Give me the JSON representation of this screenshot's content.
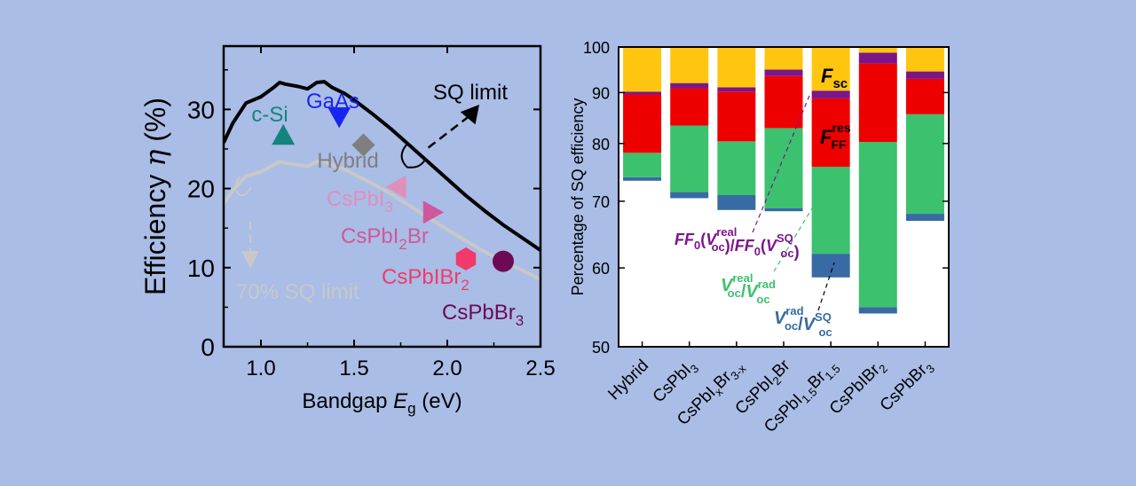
{
  "colors": {
    "background": "#a9bde6",
    "sq_limit_line": "#000000",
    "sq70_line": "#c8c8c8",
    "fsc": "#ffc50f",
    "ff_real": "#7b168a",
    "ff_res": "#ee0000",
    "voc_real_rad": "#3cc16e",
    "voc_rad_sq": "#386aa3"
  },
  "chart_data": [
    {
      "type": "scatter",
      "xlabel": "Bandgap E_g (eV)",
      "xlabel_parts": {
        "pre": "Bandgap ",
        "sym": "E",
        "sub": "g",
        "post": " (eV)"
      },
      "ylabel": "Efficiency η (%)",
      "ylabel_parts": {
        "pre": "Efficiency ",
        "sym": "η",
        "post": " (%)"
      },
      "xlim": [
        0.8,
        2.5
      ],
      "ylim": [
        0,
        38
      ],
      "xticks": [
        "1.0",
        "1.5",
        "2.0",
        "2.5"
      ],
      "xtick_values": [
        1.0,
        1.5,
        2.0,
        2.5
      ],
      "yticks": [
        "0",
        "10",
        "20",
        "30"
      ],
      "ytick_values": [
        0,
        10,
        20,
        30
      ],
      "sq_limit": {
        "label": "SQ limit",
        "x": [
          0.8,
          0.85,
          0.92,
          1.0,
          1.07,
          1.1,
          1.13,
          1.2,
          1.25,
          1.3,
          1.34,
          1.38,
          1.45,
          1.5,
          1.6,
          1.7,
          1.8,
          1.9,
          2.0,
          2.1,
          2.2,
          2.3,
          2.4,
          2.5
        ],
        "y": [
          25.8,
          28.3,
          30.8,
          31.6,
          32.8,
          33.4,
          33.2,
          32.9,
          32.6,
          33.4,
          33.5,
          32.8,
          32.0,
          31.2,
          29.4,
          27.5,
          25.4,
          23.3,
          21.2,
          19.1,
          17.2,
          15.4,
          13.8,
          12.2
        ]
      },
      "sq70_limit": {
        "label": "70% SQ limit",
        "x": [
          0.8,
          0.85,
          0.92,
          1.0,
          1.07,
          1.1,
          1.13,
          1.2,
          1.25,
          1.3,
          1.34,
          1.38,
          1.45,
          1.5,
          1.6,
          1.7,
          1.8,
          1.9,
          2.0,
          2.1,
          2.2,
          2.3,
          2.4,
          2.5
        ],
        "y": [
          18.1,
          19.8,
          21.6,
          22.1,
          23.0,
          23.4,
          23.2,
          23.0,
          22.8,
          23.4,
          23.5,
          23.0,
          22.4,
          21.8,
          20.6,
          19.3,
          17.8,
          16.3,
          14.8,
          13.4,
          12.0,
          10.8,
          9.7,
          8.5
        ]
      },
      "points": [
        {
          "label": "c-Si",
          "x": 1.12,
          "y": 26.7,
          "marker": "triangle-up",
          "color": "#13857d",
          "label_color": "#13857d",
          "label_pos": "above"
        },
        {
          "label": "GaAs",
          "x": 1.42,
          "y": 29.1,
          "marker": "triangle-down",
          "color": "#1a24f0",
          "label_color": "#1a24f0",
          "label_pos": "above"
        },
        {
          "label": "Hybrid",
          "x": 1.55,
          "y": 25.5,
          "marker": "diamond",
          "color": "#7f7f7f",
          "label_color": "#7f7f7f",
          "label_pos": "below"
        },
        {
          "label": "CsPbI3",
          "label_base": "CsPbI",
          "label_sub": "3",
          "x": 1.73,
          "y": 20.2,
          "marker": "triangle-left",
          "color": "#e08fbb",
          "label_color": "#e08fbb",
          "label_pos": "below"
        },
        {
          "label": "CsPbI2Br",
          "label_base": "CsPbI",
          "label_sub": "2",
          "label_tail": "Br",
          "x": 1.92,
          "y": 17.0,
          "marker": "triangle-right",
          "color": "#d1579c",
          "label_color": "#d1579c",
          "label_pos": "below"
        },
        {
          "label": "CsPbIBr2",
          "label_base": "CsPbIBr",
          "label_sub": "2",
          "x": 2.1,
          "y": 11.1,
          "marker": "hexagon",
          "color": "#f23a6a",
          "label_color": "#f23a6a",
          "label_pos": "below"
        },
        {
          "label": "CsPbBr3",
          "label_base": "CsPbBr",
          "label_sub": "3",
          "x": 2.3,
          "y": 10.8,
          "marker": "circle",
          "color": "#6d0a55",
          "label_color": "#6d0a55",
          "label_pos": "below"
        }
      ]
    },
    {
      "type": "bar",
      "stacked": true,
      "ylabel": "Percentage of SQ efficiency",
      "yscale": "log",
      "ylim": [
        50,
        100
      ],
      "yticks": [
        "50",
        "60",
        "70",
        "80",
        "90",
        "100"
      ],
      "ytick_values": [
        50,
        60,
        70,
        80,
        90,
        100
      ],
      "categories": [
        {
          "name": "Hybrid",
          "base": "Hybrid"
        },
        {
          "name": "CsPbI3",
          "base": "CsPbI",
          "sub": "3"
        },
        {
          "name": "CsPbIxBr3-x",
          "base": "CsPbI",
          "sub": "x",
          "tail": "Br",
          "sub2": "3-x"
        },
        {
          "name": "CsPbI2Br",
          "base": "CsPbI",
          "sub": "2",
          "tail": "Br"
        },
        {
          "name": "CsPbI1.5Br1.5",
          "base": "CsPbI",
          "sub": "1.5",
          "tail": "Br",
          "sub2": "1.5"
        },
        {
          "name": "CsPbIBr2",
          "base": "CsPbIBr",
          "sub": "2"
        },
        {
          "name": "CsPbBr3",
          "base": "CsPbBr",
          "sub": "3"
        }
      ],
      "stack_boundaries": [
        [
          73.4,
          74.0,
          78.3,
          89.6,
          90.2,
          100
        ],
        [
          70.5,
          71.5,
          83.4,
          90.9,
          92.0,
          100
        ],
        [
          68.6,
          71.0,
          80.4,
          90.2,
          91.1,
          100
        ],
        [
          68.4,
          68.9,
          82.9,
          93.5,
          94.9,
          100
        ],
        [
          58.7,
          62.0,
          75.8,
          88.8,
          90.4,
          100
        ],
        [
          54.0,
          54.8,
          80.3,
          96.3,
          98.7,
          100
        ],
        [
          66.9,
          68.0,
          85.6,
          92.9,
          94.5,
          100
        ]
      ],
      "series": [
        {
          "name": "V_oc^rad/V_oc^SQ",
          "color": "#386aa3"
        },
        {
          "name": "V_oc^real/V_oc^rad",
          "color": "#3cc16e"
        },
        {
          "name": "F_FF^res",
          "color": "#ee0000"
        },
        {
          "name": "FF_0(V_oc^real)/FF_0(V_oc^SQ)",
          "color": "#7b168a"
        },
        {
          "name": "F_sc",
          "color": "#ffc50f"
        }
      ],
      "annotations": {
        "fsc": "F_sc",
        "ffres": "F_FF^res",
        "ff0": "FF_0(V_oc^real)/FF_0(V_oc^SQ)",
        "voc_real_rad": "V_oc^real/V_oc^rad",
        "voc_rad_sq": "V_oc^rad/V_oc^SQ"
      }
    }
  ]
}
